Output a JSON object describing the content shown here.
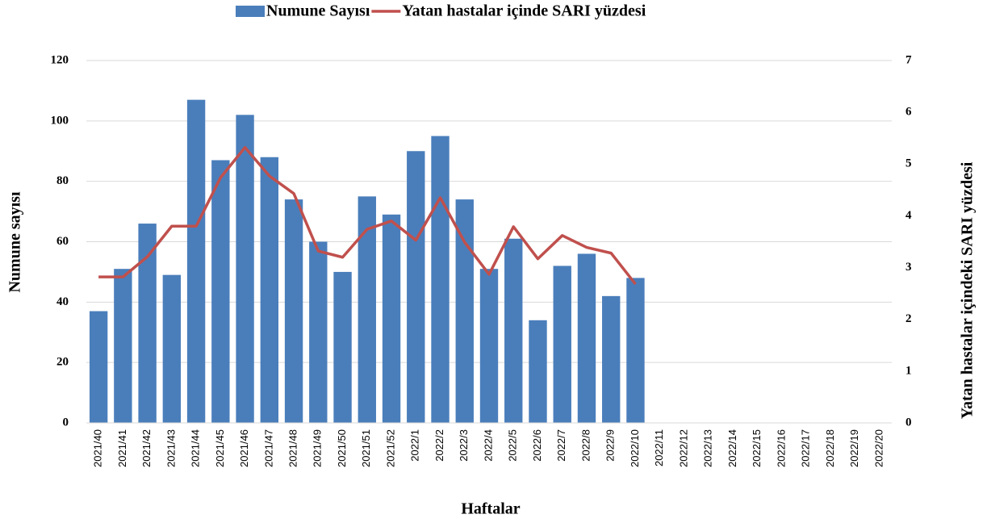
{
  "chart_data": {
    "type": "bar-line",
    "categories": [
      "2021/40",
      "2021/41",
      "2021/42",
      "2021/43",
      "2021/44",
      "2021/45",
      "2021/46",
      "2021/47",
      "2021/48",
      "2021/49",
      "2021/50",
      "2021/51",
      "2021/52",
      "2022/1",
      "2022/2",
      "2022/3",
      "2022/4",
      "2022/5",
      "2022/6",
      "2022/7",
      "2022/8",
      "2022/9",
      "2022/10",
      "2022/11",
      "2022/12",
      "2022/13",
      "2022/14",
      "2022/15",
      "2022/16",
      "2022/17",
      "2022/18",
      "2022/19",
      "2022/20"
    ],
    "series": [
      {
        "name": "Numune Sayısı",
        "type": "bar",
        "color": "#4a7ebb",
        "values": [
          37,
          51,
          66,
          49,
          107,
          87,
          102,
          88,
          74,
          60,
          50,
          75,
          69,
          90,
          95,
          74,
          51,
          61,
          34,
          52,
          56,
          42,
          48,
          null,
          null,
          null,
          null,
          null,
          null,
          null,
          null,
          null,
          null
        ]
      },
      {
        "name": "Yatan hastalar içinde SARI yüzdesi",
        "type": "line",
        "axis": "y2",
        "color": "#c0504d",
        "values": [
          2.82,
          2.82,
          3.21,
          3.8,
          3.8,
          4.74,
          5.32,
          4.77,
          4.43,
          3.32,
          3.2,
          3.74,
          3.9,
          3.53,
          4.35,
          3.49,
          2.87,
          3.79,
          3.17,
          3.62,
          3.39,
          3.28,
          2.68,
          null,
          null,
          null,
          null,
          null,
          null,
          null,
          null,
          null,
          null
        ]
      }
    ],
    "xlabel": "Haftalar",
    "ylabel": "Numune sayısı",
    "y2label": "Yatan hastalar içindeki SARI yüzdesi",
    "ylim": [
      0,
      120
    ],
    "yticks": [
      0,
      20,
      40,
      60,
      80,
      100,
      120
    ],
    "y2lim": [
      0,
      7
    ],
    "y2ticks": [
      0,
      1,
      2,
      3,
      4,
      5,
      6,
      7
    ],
    "grid": true,
    "legend": "top"
  }
}
